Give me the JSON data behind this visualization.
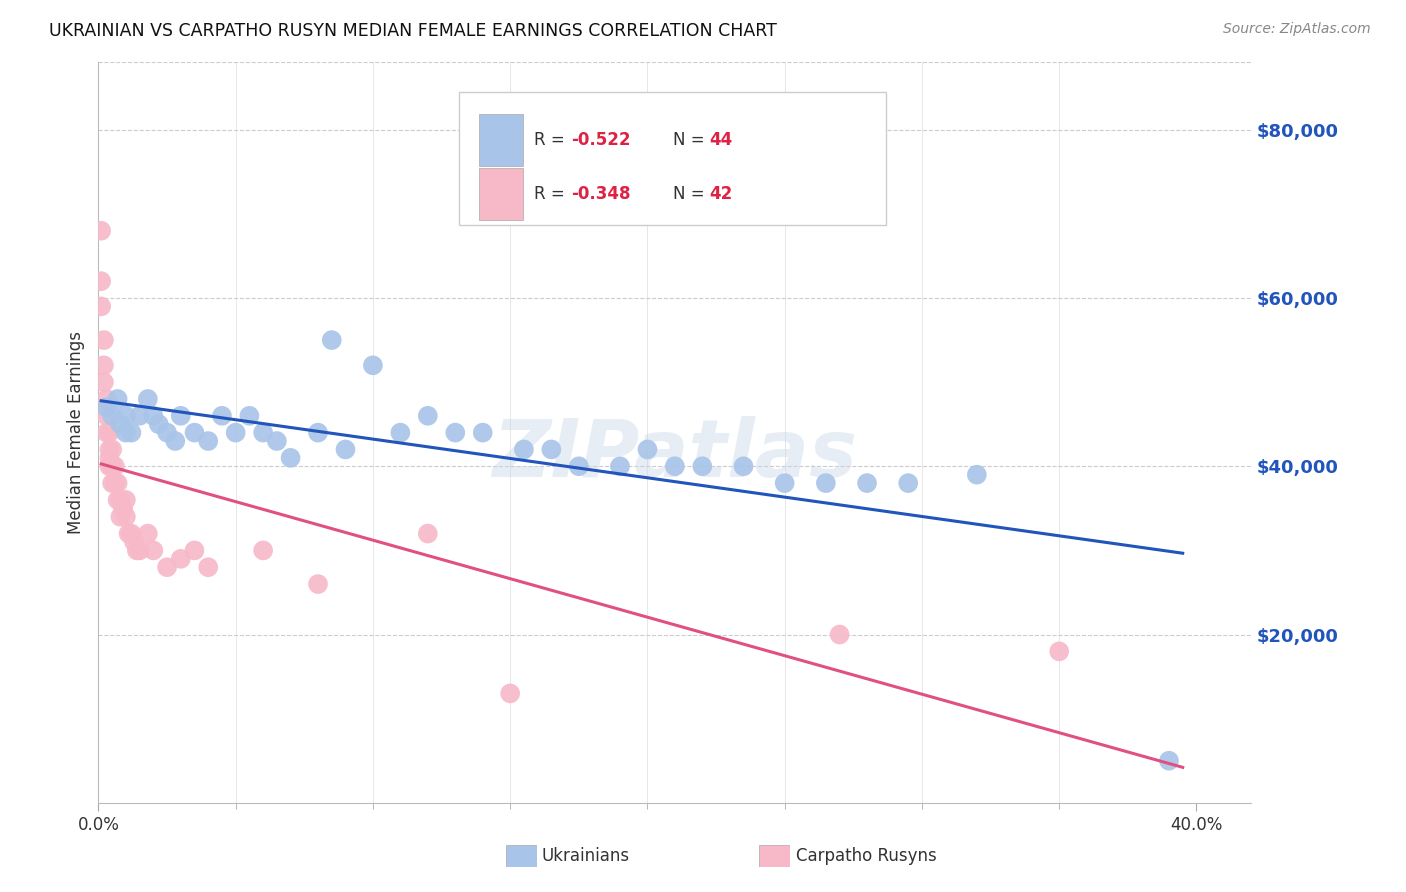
{
  "title": "UKRAINIAN VS CARPATHO RUSYN MEDIAN FEMALE EARNINGS CORRELATION CHART",
  "source": "Source: ZipAtlas.com",
  "ylabel": "Median Female Earnings",
  "right_yticks": [
    20000,
    40000,
    60000,
    80000
  ],
  "right_yticklabels": [
    "$20,000",
    "$40,000",
    "$60,000",
    "$80,000"
  ],
  "xlim": [
    0.0,
    0.42
  ],
  "ylim": [
    0,
    88000
  ],
  "legend_blue_R": "-0.522",
  "legend_blue_N": "44",
  "legend_pink_R": "-0.348",
  "legend_pink_N": "42",
  "legend_label_blue": "Ukrainians",
  "legend_label_pink": "Carpatho Rusyns",
  "blue_color": "#a8c4e8",
  "pink_color": "#f7b8c8",
  "line_blue_color": "#2255bb",
  "line_pink_color": "#e05080",
  "r_color": "#dd2244",
  "n_color": "#dd2244",
  "watermark": "ZIPatlas",
  "blue_x": [
    0.003,
    0.005,
    0.007,
    0.008,
    0.01,
    0.01,
    0.012,
    0.015,
    0.018,
    0.02,
    0.022,
    0.025,
    0.028,
    0.03,
    0.035,
    0.04,
    0.045,
    0.05,
    0.055,
    0.06,
    0.065,
    0.07,
    0.08,
    0.085,
    0.09,
    0.1,
    0.11,
    0.12,
    0.13,
    0.14,
    0.155,
    0.165,
    0.175,
    0.19,
    0.2,
    0.21,
    0.22,
    0.235,
    0.25,
    0.265,
    0.28,
    0.295,
    0.32,
    0.39
  ],
  "blue_y": [
    47000,
    46000,
    48000,
    45000,
    46000,
    44000,
    44000,
    46000,
    48000,
    46000,
    45000,
    44000,
    43000,
    46000,
    44000,
    43000,
    46000,
    44000,
    46000,
    44000,
    43000,
    41000,
    44000,
    55000,
    42000,
    52000,
    44000,
    46000,
    44000,
    44000,
    42000,
    42000,
    40000,
    40000,
    42000,
    40000,
    40000,
    40000,
    38000,
    38000,
    38000,
    38000,
    39000,
    5000
  ],
  "pink_x": [
    0.001,
    0.001,
    0.001,
    0.002,
    0.002,
    0.002,
    0.003,
    0.003,
    0.003,
    0.004,
    0.004,
    0.004,
    0.004,
    0.005,
    0.005,
    0.005,
    0.006,
    0.006,
    0.007,
    0.007,
    0.008,
    0.008,
    0.009,
    0.01,
    0.01,
    0.011,
    0.012,
    0.013,
    0.014,
    0.015,
    0.018,
    0.02,
    0.025,
    0.03,
    0.035,
    0.04,
    0.06,
    0.08,
    0.12,
    0.15,
    0.27,
    0.35
  ],
  "pink_y": [
    68000,
    62000,
    59000,
    55000,
    52000,
    50000,
    48000,
    46000,
    44000,
    44000,
    42000,
    41000,
    40000,
    42000,
    40000,
    38000,
    40000,
    38000,
    38000,
    36000,
    36000,
    34000,
    35000,
    36000,
    34000,
    32000,
    32000,
    31000,
    30000,
    30000,
    32000,
    30000,
    28000,
    29000,
    30000,
    28000,
    30000,
    26000,
    32000,
    13000,
    20000,
    18000
  ]
}
